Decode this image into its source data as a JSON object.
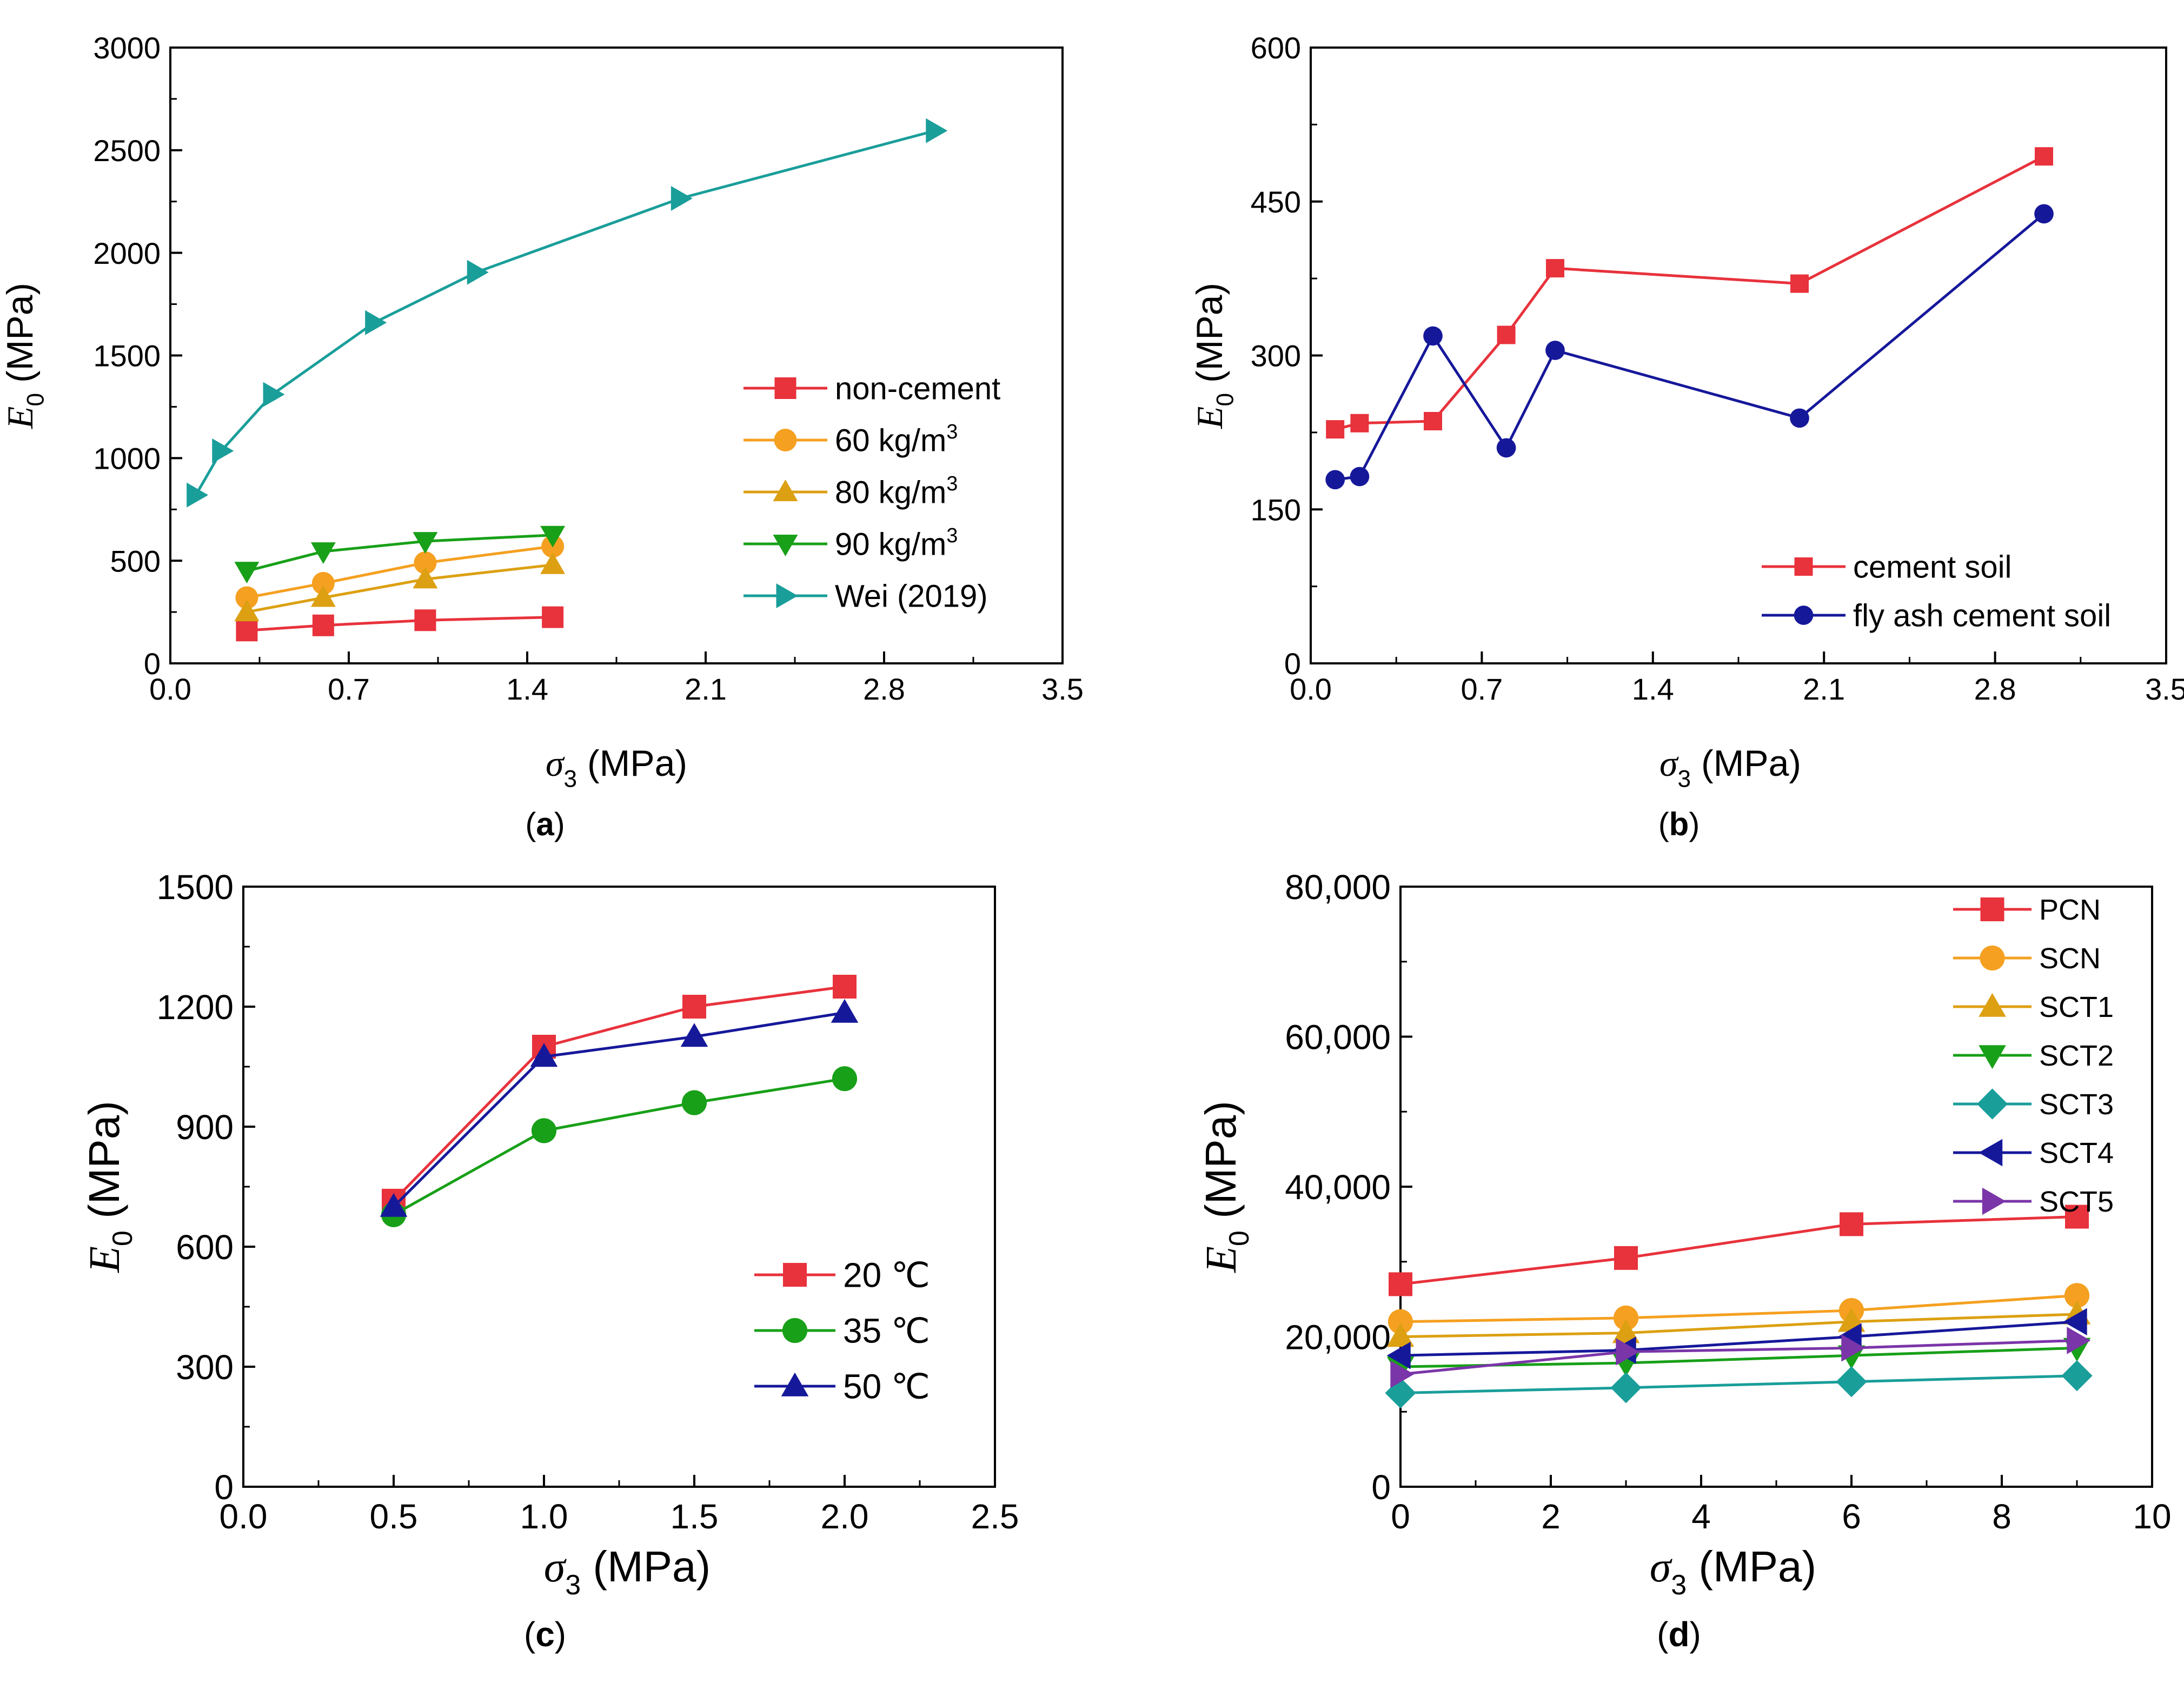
{
  "chart_data": [
    {
      "panel_label": "a",
      "type": "line",
      "title": "",
      "xlabel_symbol": "σ",
      "xlabel_sub": "3",
      "xlabel_unit": " (MPa)",
      "ylabel_symbol": "E",
      "ylabel_sub": "0",
      "ylabel_unit": " (MPa)",
      "xlim": [
        0,
        3.5
      ],
      "ylim": [
        0,
        3000
      ],
      "xticks": [
        0.0,
        0.7,
        1.4,
        2.1,
        2.8,
        3.5
      ],
      "xtick_labels": [
        "0.0",
        "0.7",
        "1.4",
        "2.1",
        "2.8",
        "3.5"
      ],
      "yticks": [
        0,
        500,
        1000,
        1500,
        2000,
        2500,
        3000
      ],
      "ytick_labels": [
        "0",
        "500",
        "1000",
        "1500",
        "2000",
        "2500",
        "3000"
      ],
      "legend_position": "center-right",
      "series": [
        {
          "name": "non-cement",
          "legend_parts": [
            "non-cement"
          ],
          "color": "#e8323c",
          "marker": "square",
          "x": [
            0.3,
            0.6,
            1.0,
            1.5
          ],
          "y": [
            160,
            185,
            210,
            225
          ]
        },
        {
          "name": "60 kg/m3",
          "legend_parts": [
            "60 kg/m",
            "3"
          ],
          "color": "#f5a020",
          "marker": "circle",
          "x": [
            0.3,
            0.6,
            1.0,
            1.5
          ],
          "y": [
            320,
            390,
            490,
            570
          ]
        },
        {
          "name": "80 kg/m3",
          "legend_parts": [
            "80 kg/m",
            "3"
          ],
          "color": "#dca012",
          "marker": "triangle-up",
          "x": [
            0.3,
            0.6,
            1.0,
            1.5
          ],
          "y": [
            250,
            320,
            410,
            480
          ]
        },
        {
          "name": "90 kg/m3",
          "legend_parts": [
            "90 kg/m",
            "3"
          ],
          "color": "#18a018",
          "marker": "triangle-down",
          "x": [
            0.3,
            0.6,
            1.0,
            1.5
          ],
          "y": [
            450,
            545,
            595,
            625
          ]
        },
        {
          "name": "Wei (2019)",
          "legend_parts": [
            "Wei (2019)"
          ],
          "color": "#1a9e9a",
          "marker": "triangle-right",
          "x": [
            0.1,
            0.2,
            0.4,
            0.8,
            1.2,
            2.0,
            3.0
          ],
          "y": [
            820,
            1035,
            1310,
            1660,
            1905,
            2265,
            2595
          ]
        }
      ]
    },
    {
      "panel_label": "b",
      "type": "line",
      "title": "",
      "xlabel_symbol": "σ",
      "xlabel_sub": "3",
      "xlabel_unit": " (MPa)",
      "ylabel_symbol": "E",
      "ylabel_sub": "0",
      "ylabel_unit": " (MPa)",
      "xlim": [
        0,
        3.5
      ],
      "ylim": [
        0,
        600
      ],
      "xticks": [
        0.0,
        0.7,
        1.4,
        2.1,
        2.8,
        3.5
      ],
      "xtick_labels": [
        "0.0",
        "0.7",
        "1.4",
        "2.1",
        "2.8",
        "3.5"
      ],
      "yticks": [
        0,
        150,
        300,
        450,
        600
      ],
      "ytick_labels": [
        "0",
        "150",
        "300",
        "450",
        "600"
      ],
      "legend_position": "bottom-right",
      "series": [
        {
          "name": "cement soil",
          "legend_parts": [
            "cement soil"
          ],
          "color": "#e8323c",
          "marker": "square",
          "x": [
            0.1,
            0.2,
            0.5,
            0.8,
            1.0,
            2.0,
            3.0
          ],
          "y": [
            228,
            234,
            236,
            320,
            385,
            370,
            494
          ]
        },
        {
          "name": "fly ash cement soil",
          "legend_parts": [
            "fly ash cement soil"
          ],
          "color": "#16189a",
          "marker": "circle",
          "x": [
            0.1,
            0.2,
            0.5,
            0.8,
            1.0,
            2.0,
            3.0
          ],
          "y": [
            179,
            182,
            319,
            210,
            305,
            239,
            438
          ]
        }
      ]
    },
    {
      "panel_label": "c",
      "type": "line",
      "title": "",
      "xlabel_symbol": "σ",
      "xlabel_sub": "3",
      "xlabel_unit": " (MPa)",
      "ylabel_symbol": "E",
      "ylabel_sub": "0",
      "ylabel_unit": " (MPa)",
      "xlim": [
        0,
        2.5
      ],
      "ylim": [
        0,
        1500
      ],
      "xticks": [
        0.0,
        0.5,
        1.0,
        1.5,
        2.0,
        2.5
      ],
      "xtick_labels": [
        "0.0",
        "0.5",
        "1.0",
        "1.5",
        "2.0",
        "2.5"
      ],
      "yticks": [
        0,
        300,
        600,
        900,
        1200,
        1500
      ],
      "ytick_labels": [
        "0",
        "300",
        "600",
        "900",
        "1200",
        "1500"
      ],
      "legend_position": "bottom-right",
      "series": [
        {
          "name": "20 ℃",
          "legend_parts": [
            "20 ℃"
          ],
          "color": "#e8323c",
          "marker": "square",
          "x": [
            0.5,
            1.0,
            1.5,
            2.0
          ],
          "y": [
            715,
            1100,
            1200,
            1250
          ]
        },
        {
          "name": "35 ℃",
          "legend_parts": [
            "35 ℃"
          ],
          "color": "#18a018",
          "marker": "circle",
          "x": [
            0.5,
            1.0,
            1.5,
            2.0
          ],
          "y": [
            680,
            890,
            960,
            1020
          ]
        },
        {
          "name": "50 ℃",
          "legend_parts": [
            "50 ℃"
          ],
          "color": "#16189a",
          "marker": "triangle-up",
          "x": [
            0.5,
            1.0,
            1.5,
            2.0
          ],
          "y": [
            700,
            1075,
            1125,
            1185
          ]
        }
      ]
    },
    {
      "panel_label": "d",
      "type": "line",
      "title": "",
      "xlabel_symbol": "σ",
      "xlabel_sub": "3",
      "xlabel_unit": " (MPa)",
      "ylabel_symbol": "E",
      "ylabel_sub": "0",
      "ylabel_unit": " (MPa)",
      "xlim": [
        0,
        10
      ],
      "ylim": [
        0,
        80000
      ],
      "xticks": [
        0,
        2,
        4,
        6,
        8,
        10
      ],
      "xtick_labels": [
        "0",
        "2",
        "4",
        "6",
        "8",
        "10"
      ],
      "yticks": [
        0,
        20000,
        40000,
        60000,
        80000
      ],
      "ytick_labels": [
        "0",
        "20,000",
        "40,000",
        "60,000",
        "80,000"
      ],
      "legend_position": "top-right",
      "series": [
        {
          "name": "PCN",
          "legend_parts": [
            "PCN"
          ],
          "color": "#e8323c",
          "marker": "square",
          "x": [
            0,
            3,
            6,
            9
          ],
          "y": [
            27000,
            30500,
            35000,
            36000
          ]
        },
        {
          "name": "SCN",
          "legend_parts": [
            "SCN"
          ],
          "color": "#f5a020",
          "marker": "circle",
          "x": [
            0,
            3,
            6,
            9
          ],
          "y": [
            22000,
            22500,
            23500,
            25500
          ]
        },
        {
          "name": "SCT1",
          "legend_parts": [
            "SCT1"
          ],
          "color": "#dca012",
          "marker": "triangle-up",
          "x": [
            0,
            3,
            6,
            9
          ],
          "y": [
            20000,
            20500,
            22000,
            23000
          ]
        },
        {
          "name": "SCT2",
          "legend_parts": [
            "SCT2"
          ],
          "color": "#18a018",
          "marker": "triangle-down",
          "x": [
            0,
            3,
            6,
            9
          ],
          "y": [
            16000,
            16500,
            17500,
            18500
          ]
        },
        {
          "name": "SCT3",
          "legend_parts": [
            "SCT3"
          ],
          "color": "#1a9e9a",
          "marker": "diamond",
          "x": [
            0,
            3,
            6,
            9
          ],
          "y": [
            12500,
            13200,
            14000,
            14800
          ]
        },
        {
          "name": "SCT4",
          "legend_parts": [
            "SCT4"
          ],
          "color": "#16189a",
          "marker": "triangle-left",
          "x": [
            0,
            3,
            6,
            9
          ],
          "y": [
            17500,
            18200,
            20000,
            22000
          ]
        },
        {
          "name": "SCT5",
          "legend_parts": [
            "SCT5"
          ],
          "color": "#7a35a8",
          "marker": "triangle-right",
          "x": [
            0,
            3,
            6,
            9
          ],
          "y": [
            15000,
            18000,
            18500,
            19500
          ]
        }
      ]
    }
  ]
}
